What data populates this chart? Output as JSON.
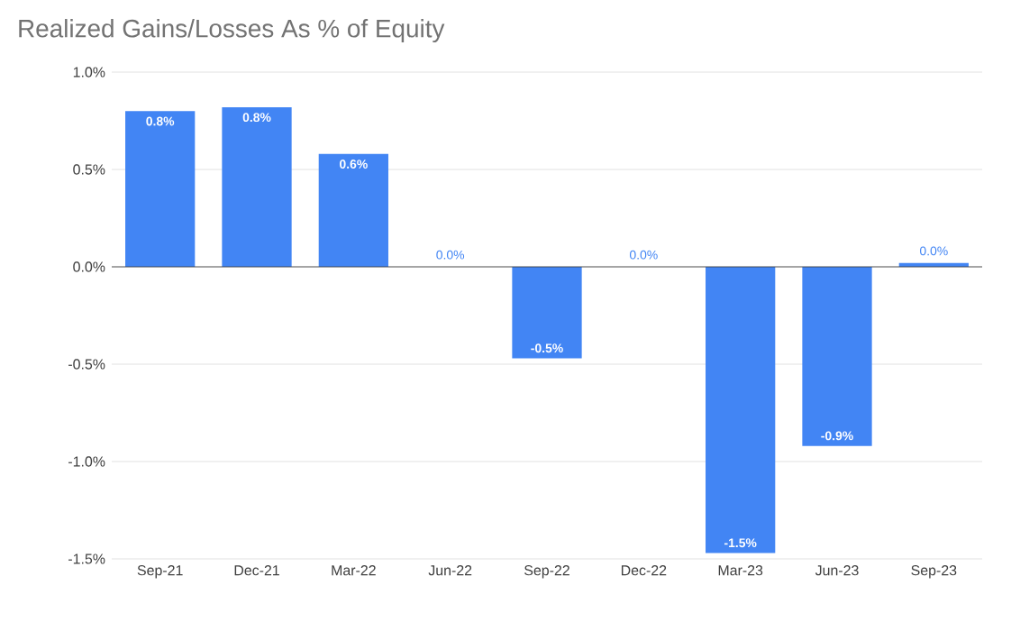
{
  "chart_data": {
    "type": "bar",
    "title": "Realized Gains/Losses As % of Equity",
    "categories": [
      "Sep-21",
      "Dec-21",
      "Mar-22",
      "Jun-22",
      "Sep-22",
      "Dec-22",
      "Mar-23",
      "Jun-23",
      "Sep-23"
    ],
    "values": [
      0.8,
      0.82,
      0.58,
      0.0,
      -0.47,
      0.0,
      -1.47,
      -0.92,
      0.02
    ],
    "value_labels": [
      "0.8%",
      "0.8%",
      "0.6%",
      "0.0%",
      "-0.5%",
      "0.0%",
      "-1.5%",
      "-0.9%",
      "0.0%"
    ],
    "color": "#4285f4",
    "ylim": [
      -1.5,
      1.0
    ],
    "yticks": [
      {
        "value": -1.5,
        "label": "-1.5%"
      },
      {
        "value": -1.0,
        "label": "-1.0%"
      },
      {
        "value": -0.5,
        "label": "-0.5%"
      },
      {
        "value": 0.0,
        "label": "0.0%"
      },
      {
        "value": 0.5,
        "label": "0.5%"
      },
      {
        "value": 1.0,
        "label": "1.0%"
      }
    ],
    "grid": "y"
  }
}
